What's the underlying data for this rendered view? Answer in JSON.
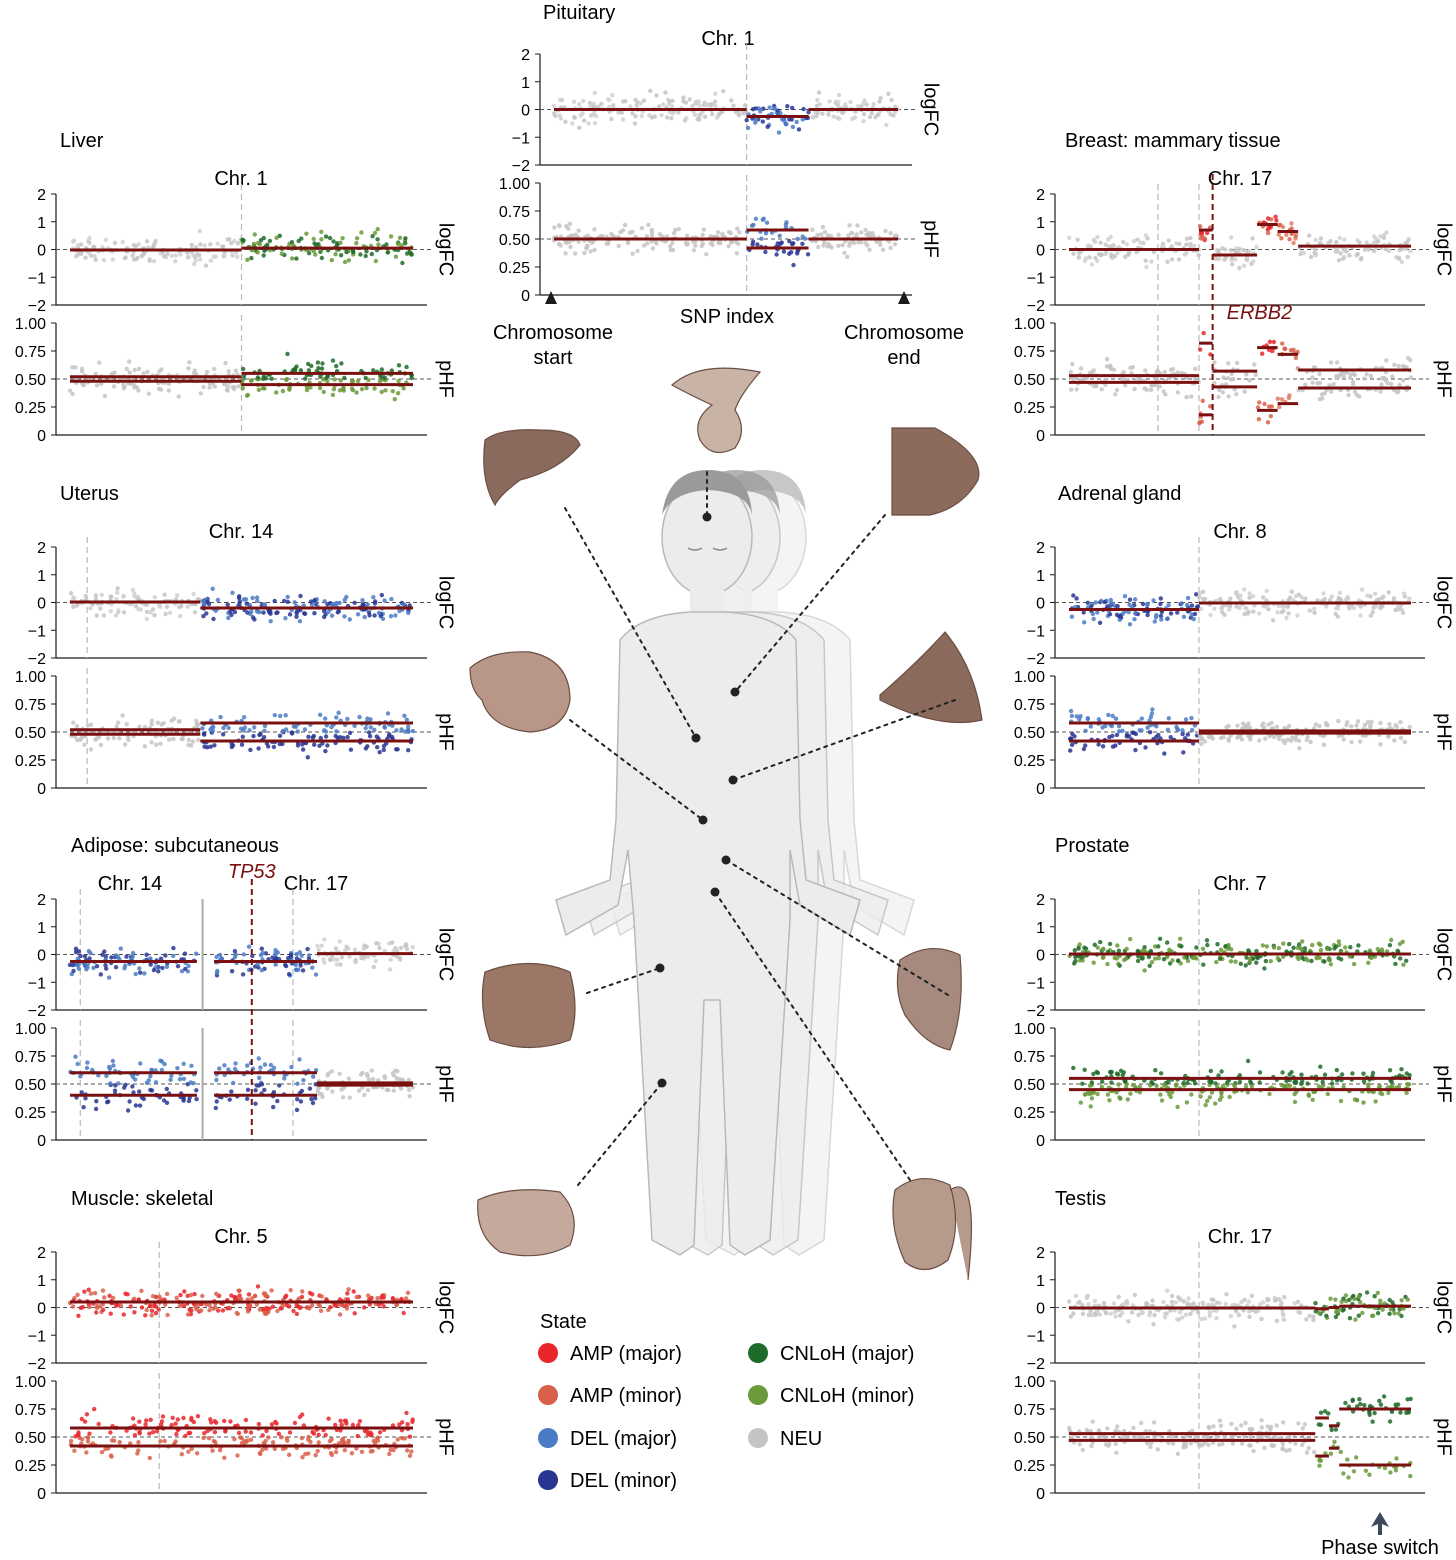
{
  "figure": {
    "snp_index_label": "SNP index",
    "chromosome_start": [
      "Chromosome",
      "start"
    ],
    "chromosome_end": [
      "Chromosome",
      "end"
    ],
    "phase_switch_label": "Phase switch",
    "legend_title": "State"
  },
  "legend": [
    {
      "label": "AMP (major)",
      "color": "#e8262b"
    },
    {
      "label": "AMP (minor)",
      "color": "#d9604a"
    },
    {
      "label": "DEL (major)",
      "color": "#4a7bc4"
    },
    {
      "label": "DEL (minor)",
      "color": "#283593"
    },
    {
      "label": "CNLoH (major)",
      "color": "#1e6b2a"
    },
    {
      "label": "CNLoH (minor)",
      "color": "#6a9a3a"
    },
    {
      "label": "NEU",
      "color": "#c4c4c4"
    }
  ],
  "colors": {
    "neu": "#c4c4c4",
    "segment": "#7b1010",
    "axis": "#1a1a1a",
    "body": "#ececec",
    "body_outline": "#b9b9b9",
    "tissue": "#8a6a5c"
  },
  "tissues": [
    "pituitary-icon",
    "liver-icon",
    "breast-icon",
    "thyroid-icon",
    "adrenal-icon",
    "adipose-icon",
    "prostate-icon",
    "muscle-icon",
    "testis-icon"
  ],
  "chart_data": [
    {
      "id": "pituitary",
      "type": "scatter",
      "title": "Pituitary",
      "chromosomes": [
        {
          "label": "Chr. 1"
        }
      ],
      "logFC_axis": {
        "label": "logFC",
        "ylim": [
          -2,
          2
        ],
        "ticks": [
          "2",
          "1",
          "0",
          "−1",
          "−2"
        ]
      },
      "pHF_axis": {
        "label": "pHF",
        "ylim": [
          0,
          1
        ],
        "ticks": [
          "1.00",
          "0.75",
          "0.50",
          "0.25",
          "0"
        ]
      },
      "regions": [
        {
          "from": 0,
          "to": 0.56,
          "state": "NEU",
          "logFC": 0,
          "pHF": [
            0.5,
            0.5
          ]
        },
        {
          "from": 0.56,
          "to": 0.74,
          "state": "DEL (major)",
          "logFC": -0.25,
          "pHF": [
            0.58,
            0.42
          ]
        },
        {
          "from": 0.74,
          "to": 1,
          "state": "NEU",
          "logFC": 0,
          "pHF": [
            0.5,
            0.5
          ]
        }
      ]
    },
    {
      "id": "liver",
      "type": "scatter",
      "title": "Liver",
      "chromosomes": [
        {
          "label": "Chr. 1"
        }
      ],
      "logFC_axis": {
        "label": "logFC",
        "ylim": [
          -2,
          2
        ],
        "ticks": [
          "2",
          "1",
          "0",
          "−1",
          "−2"
        ]
      },
      "pHF_axis": {
        "label": "pHF",
        "ylim": [
          0,
          1
        ],
        "ticks": [
          "1.00",
          "0.75",
          "0.50",
          "0.25",
          "0"
        ]
      },
      "regions": [
        {
          "from": 0,
          "to": 0.5,
          "state": "NEU",
          "logFC": -0.02,
          "pHF": [
            0.52,
            0.48
          ]
        },
        {
          "from": 0.5,
          "to": 1,
          "state": "CNLoH",
          "logFC": 0.05,
          "pHF": [
            0.55,
            0.45
          ]
        }
      ]
    },
    {
      "id": "breast",
      "type": "scatter",
      "title": "Breast: mammary tissue",
      "chromosomes": [
        {
          "label": "Chr. 17"
        }
      ],
      "gene_marker": {
        "label": "ERBB2",
        "at": 0.42
      },
      "logFC_axis": {
        "label": "logFC",
        "ylim": [
          -2,
          2
        ],
        "ticks": [
          "2",
          "1",
          "0",
          "−1",
          "−2"
        ]
      },
      "pHF_axis": {
        "label": "pHF",
        "ylim": [
          0,
          1
        ],
        "ticks": [
          "1.00",
          "0.75",
          "0.50",
          "0.25",
          "0"
        ]
      },
      "regions": [
        {
          "from": 0,
          "to": 0.38,
          "state": "NEU",
          "logFC": 0,
          "pHF": [
            0.53,
            0.47
          ]
        },
        {
          "from": 0.38,
          "to": 0.42,
          "state": "AMP",
          "logFC": 0.7,
          "pHF": [
            0.82,
            0.18
          ]
        },
        {
          "from": 0.42,
          "to": 0.55,
          "state": "NEU",
          "logFC": -0.2,
          "pHF": [
            0.57,
            0.43
          ]
        },
        {
          "from": 0.55,
          "to": 0.61,
          "state": "AMP",
          "logFC": 0.9,
          "pHF": [
            0.78,
            0.22
          ]
        },
        {
          "from": 0.61,
          "to": 0.67,
          "state": "AMP (minor)",
          "logFC": 0.65,
          "pHF": [
            0.72,
            0.28
          ]
        },
        {
          "from": 0.67,
          "to": 1,
          "state": "NEU",
          "logFC": 0.12,
          "pHF": [
            0.58,
            0.42
          ]
        }
      ]
    },
    {
      "id": "uterus",
      "type": "scatter",
      "title": "Uterus",
      "chromosomes": [
        {
          "label": "Chr. 14"
        }
      ],
      "logFC_axis": {
        "label": "logFC",
        "ylim": [
          -2,
          2
        ],
        "ticks": [
          "2",
          "1",
          "0",
          "−1",
          "−2"
        ]
      },
      "pHF_axis": {
        "label": "pHF",
        "ylim": [
          0,
          1
        ],
        "ticks": [
          "1.00",
          "0.75",
          "0.50",
          "0.25",
          "0"
        ]
      },
      "regions": [
        {
          "from": 0,
          "to": 0.38,
          "state": "NEU",
          "logFC": 0.02,
          "pHF": [
            0.52,
            0.48
          ]
        },
        {
          "from": 0.38,
          "to": 1,
          "state": "DEL",
          "logFC": -0.2,
          "pHF": [
            0.58,
            0.42
          ]
        }
      ]
    },
    {
      "id": "adrenal",
      "type": "scatter",
      "title": "Adrenal gland",
      "chromosomes": [
        {
          "label": "Chr. 8"
        }
      ],
      "logFC_axis": {
        "label": "logFC",
        "ylim": [
          -2,
          2
        ],
        "ticks": [
          "2",
          "1",
          "0",
          "−1",
          "−2"
        ]
      },
      "pHF_axis": {
        "label": "pHF",
        "ylim": [
          0,
          1
        ],
        "ticks": [
          "1.00",
          "0.75",
          "0.50",
          "0.25",
          "0"
        ]
      },
      "regions": [
        {
          "from": 0,
          "to": 0.38,
          "state": "DEL",
          "logFC": -0.25,
          "pHF": [
            0.58,
            0.42
          ]
        },
        {
          "from": 0.38,
          "to": 1,
          "state": "NEU",
          "logFC": -0.02,
          "pHF": [
            0.51,
            0.49
          ]
        }
      ]
    },
    {
      "id": "adipose",
      "type": "scatter",
      "title": "Adipose: subcutaneous",
      "chromosomes": [
        {
          "label": "Chr. 14"
        },
        {
          "label": "Chr. 17"
        }
      ],
      "gene_marker": {
        "label": "TP53",
        "at": 0.53
      },
      "logFC_axis": {
        "label": "logFC",
        "ylim": [
          -2,
          2
        ],
        "ticks": [
          "2",
          "1",
          "0",
          "−1",
          "−2"
        ]
      },
      "pHF_axis": {
        "label": "pHF",
        "ylim": [
          0,
          1
        ],
        "ticks": [
          "1.00",
          "0.75",
          "0.50",
          "0.25",
          "0"
        ]
      },
      "regions": [
        {
          "from": 0,
          "to": 0.37,
          "state": "DEL",
          "logFC": -0.25,
          "pHF": [
            0.6,
            0.4
          ]
        },
        {
          "from": 0.42,
          "to": 0.72,
          "state": "DEL",
          "logFC": -0.25,
          "pHF": [
            0.6,
            0.4
          ]
        },
        {
          "from": 0.72,
          "to": 1,
          "state": "NEU",
          "logFC": 0.03,
          "pHF": [
            0.51,
            0.49
          ]
        }
      ]
    },
    {
      "id": "prostate",
      "type": "scatter",
      "title": "Prostate",
      "chromosomes": [
        {
          "label": "Chr. 7"
        }
      ],
      "logFC_axis": {
        "label": "logFC",
        "ylim": [
          -2,
          2
        ],
        "ticks": [
          "2",
          "1",
          "0",
          "−1",
          "−2"
        ]
      },
      "pHF_axis": {
        "label": "pHF",
        "ylim": [
          0,
          1
        ],
        "ticks": [
          "1.00",
          "0.75",
          "0.50",
          "0.25",
          "0"
        ]
      },
      "regions": [
        {
          "from": 0,
          "to": 1,
          "state": "CNLoH",
          "logFC": 0.02,
          "pHF": [
            0.55,
            0.45
          ]
        }
      ]
    },
    {
      "id": "muscle",
      "type": "scatter",
      "title": "Muscle: skeletal",
      "chromosomes": [
        {
          "label": "Chr. 5"
        }
      ],
      "logFC_axis": {
        "label": "logFC",
        "ylim": [
          -2,
          2
        ],
        "ticks": [
          "2",
          "1",
          "0",
          "−1",
          "−2"
        ]
      },
      "pHF_axis": {
        "label": "pHF",
        "ylim": [
          0,
          1
        ],
        "ticks": [
          "1.00",
          "0.75",
          "0.50",
          "0.25",
          "0"
        ]
      },
      "regions": [
        {
          "from": 0,
          "to": 1,
          "state": "AMP",
          "logFC": 0.2,
          "pHF": [
            0.58,
            0.42
          ]
        }
      ]
    },
    {
      "id": "testis",
      "type": "scatter",
      "title": "Testis",
      "chromosomes": [
        {
          "label": "Chr. 17"
        }
      ],
      "logFC_axis": {
        "label": "logFC",
        "ylim": [
          -2,
          2
        ],
        "ticks": [
          "2",
          "1",
          "0",
          "−1",
          "−2"
        ]
      },
      "pHF_axis": {
        "label": "pHF",
        "ylim": [
          0,
          1
        ],
        "ticks": [
          "1.00",
          "0.75",
          "0.50",
          "0.25",
          "0"
        ]
      },
      "regions": [
        {
          "from": 0,
          "to": 0.72,
          "state": "NEU",
          "logFC": -0.02,
          "pHF": [
            0.53,
            0.47
          ]
        },
        {
          "from": 0.72,
          "to": 0.76,
          "state": "CNLoH",
          "logFC": -0.05,
          "pHF": [
            0.67,
            0.33
          ]
        },
        {
          "from": 0.76,
          "to": 0.79,
          "state": "CNLoH",
          "logFC": 0.0,
          "pHF": [
            0.6,
            0.4
          ]
        },
        {
          "from": 0.79,
          "to": 1,
          "state": "CNLoH",
          "logFC": 0.05,
          "pHF": [
            0.75,
            0.25
          ]
        }
      ]
    }
  ]
}
